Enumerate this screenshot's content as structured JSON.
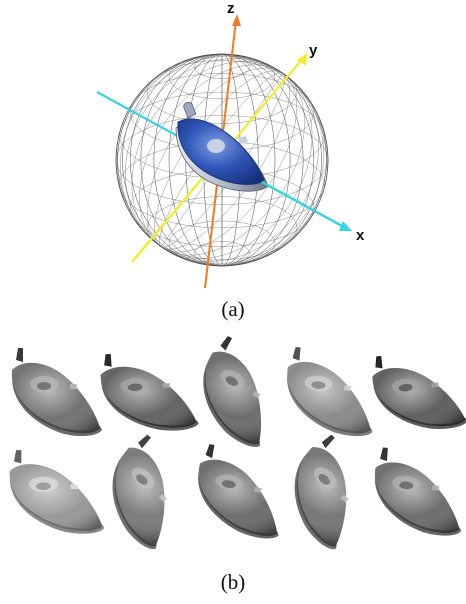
{
  "panel_a": {
    "caption": "(a)",
    "axes": {
      "x": {
        "label": "x",
        "color": "#35d4e4"
      },
      "y": {
        "label": "y",
        "color": "#f2ee2a"
      },
      "z": {
        "label": "z",
        "color": "#f07a22"
      }
    },
    "sphere_color": "#555555",
    "iron_color": "#2c4fb0"
  },
  "panel_b": {
    "caption": "(b)",
    "grid": {
      "rows": 2,
      "cols": 5
    },
    "views": [
      {
        "row": 0,
        "col": 0,
        "tone": 0.42
      },
      {
        "row": 0,
        "col": 1,
        "tone": 0.36
      },
      {
        "row": 0,
        "col": 2,
        "tone": 0.4
      },
      {
        "row": 0,
        "col": 3,
        "tone": 0.52
      },
      {
        "row": 0,
        "col": 4,
        "tone": 0.34
      },
      {
        "row": 1,
        "col": 0,
        "tone": 0.58
      },
      {
        "row": 1,
        "col": 1,
        "tone": 0.46
      },
      {
        "row": 1,
        "col": 2,
        "tone": 0.4
      },
      {
        "row": 1,
        "col": 3,
        "tone": 0.44
      },
      {
        "row": 1,
        "col": 4,
        "tone": 0.4
      }
    ]
  }
}
